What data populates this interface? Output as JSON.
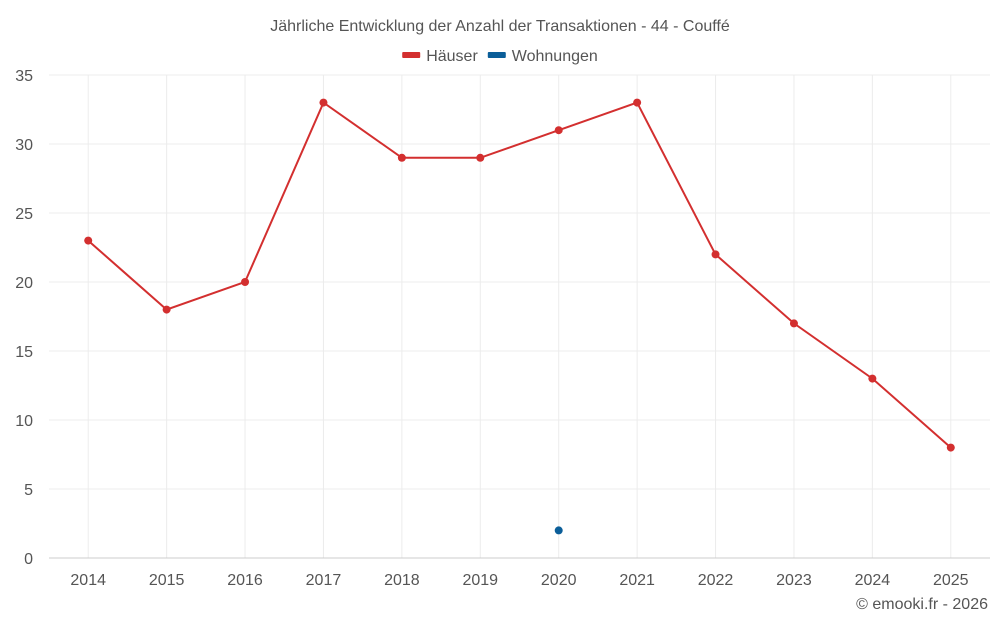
{
  "chart_data": {
    "type": "line",
    "title": "Jährliche Entwicklung der Anzahl der Transaktionen - 44 - Couffé",
    "categories": [
      "2014",
      "2015",
      "2016",
      "2017",
      "2018",
      "2019",
      "2020",
      "2021",
      "2022",
      "2023",
      "2024",
      "2025"
    ],
    "series": [
      {
        "name": "Häuser",
        "color": "#d32f2f",
        "values": [
          23,
          18,
          20,
          33,
          29,
          29,
          31,
          33,
          22,
          17,
          13,
          8
        ]
      },
      {
        "name": "Wohnungen",
        "color": "#0b5e99",
        "values": [
          null,
          null,
          null,
          null,
          null,
          null,
          2,
          null,
          null,
          null,
          null,
          null
        ]
      }
    ],
    "ylim": [
      0,
      35
    ],
    "yticks": [
      "0",
      "5",
      "10",
      "15",
      "20",
      "25",
      "30",
      "35"
    ],
    "grid": true,
    "legend_position": "top-center",
    "credit": "© emooki.fr - 2026"
  }
}
